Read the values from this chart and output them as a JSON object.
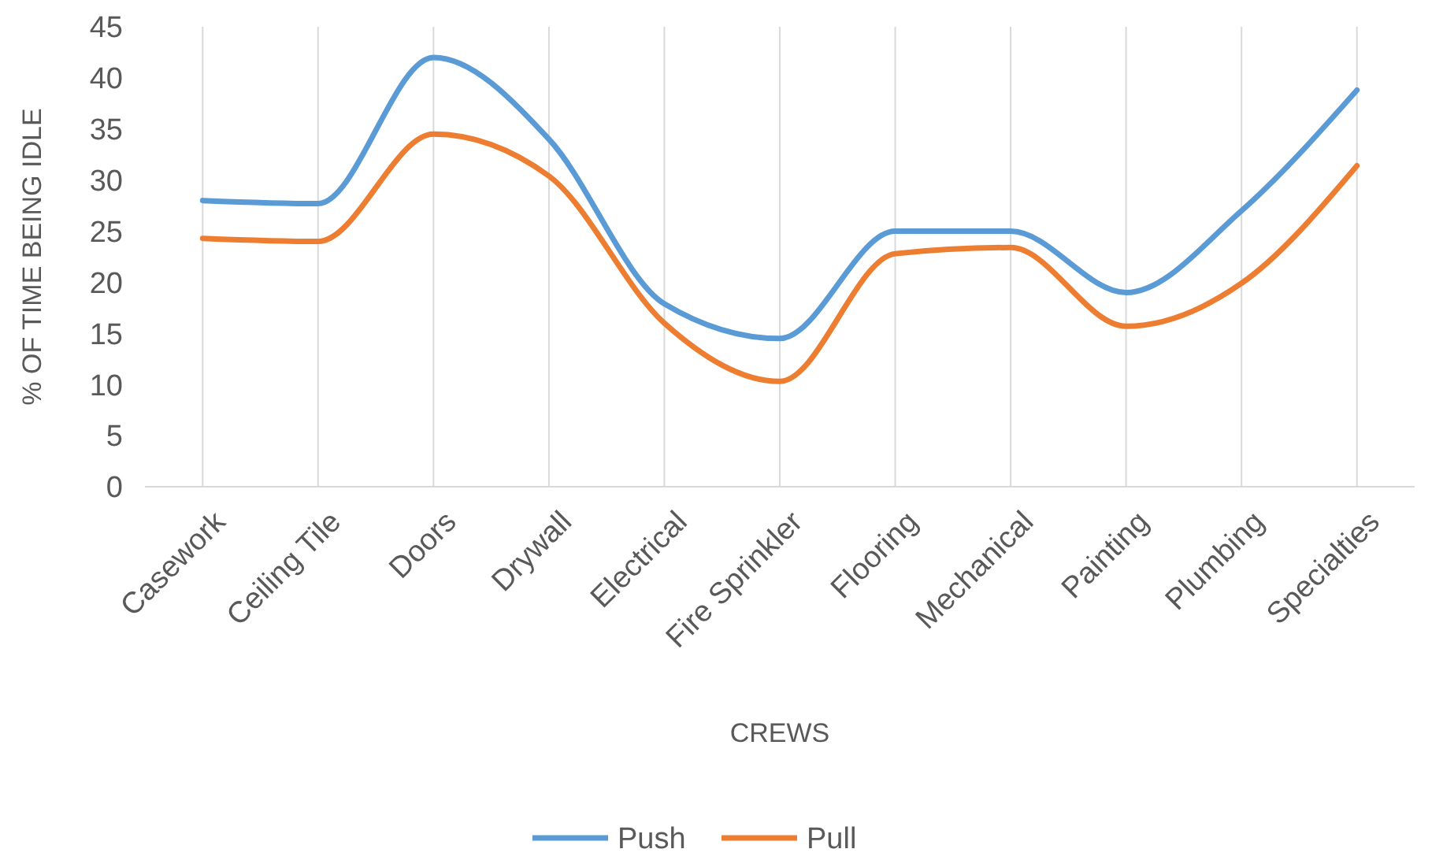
{
  "chart_data": {
    "type": "line",
    "xlabel": "CREWS",
    "ylabel": "% OF TIME BEING IDLE",
    "categories": [
      "Casework",
      "Ceiling Tile",
      "Doors",
      "Drywall",
      "Electrical",
      "Fire Sprinkler",
      "Flooring",
      "Mechanical",
      "Painting",
      "Plumbing",
      "Specialties"
    ],
    "series": [
      {
        "name": "Push",
        "color": "#5b9bd5",
        "values": [
          28,
          27.7,
          42,
          34,
          17.9,
          14.5,
          25,
          25,
          19,
          27,
          38.8
        ]
      },
      {
        "name": "Pull",
        "color": "#ed7d31",
        "values": [
          24.3,
          24,
          34.5,
          30.4,
          16,
          10.3,
          22.8,
          23.4,
          15.7,
          19.9,
          31.4
        ]
      }
    ],
    "ylim": [
      0,
      45
    ],
    "yticks": [
      0,
      5,
      10,
      15,
      20,
      25,
      30,
      35,
      40,
      45
    ],
    "grid": "x",
    "legend": "bottom",
    "line_style": "solid"
  }
}
